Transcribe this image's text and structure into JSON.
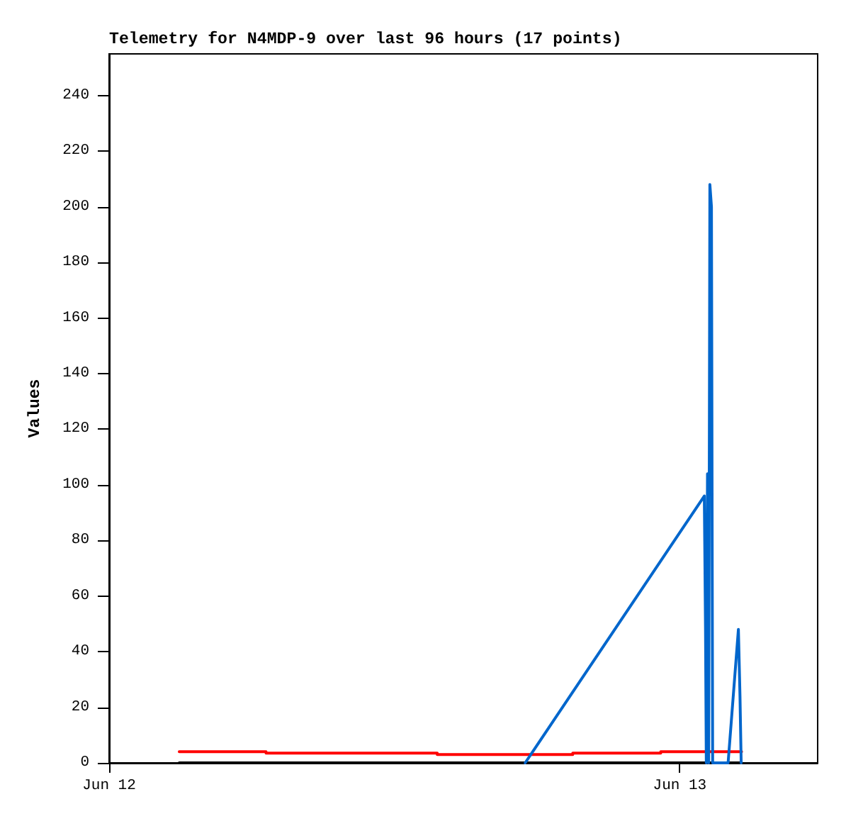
{
  "chart_data": {
    "type": "line",
    "title": "Telemetry for N4MDP-9 over last 96 hours (17 points)",
    "ylabel": "Values",
    "xlim": [
      "--06-12T00:00",
      "--06-13T05:48"
    ],
    "xticks": [
      {
        "value": "--06-12",
        "label": "Jun 12"
      },
      {
        "value": "--06-13",
        "label": "Jun 13"
      }
    ],
    "ylim": [
      0,
      255
    ],
    "yticks": [
      0,
      20,
      40,
      60,
      80,
      100,
      120,
      140,
      160,
      180,
      200,
      220,
      240
    ],
    "marker": "none",
    "series": [
      {
        "color": "#000000",
        "x": [
          "--06-12T02:57",
          "--06-13T02:36"
        ],
        "values": [
          0,
          0
        ]
      },
      {
        "type": "step",
        "color": "#ff0000",
        "x": [
          "--06-12T02:57",
          "--06-12T06:36",
          "--06-12T13:48",
          "--06-12T19:30",
          "--06-12T23:12",
          "--06-13T02:36"
        ],
        "values": [
          4,
          3.5,
          3,
          3.5,
          4,
          4
        ]
      },
      {
        "color": "#0066cc",
        "x": [
          "--06-12T17:30",
          "--06-13T01:02",
          "--06-13T01:05",
          "--06-13T01:07",
          "--06-13T01:10",
          "--06-13T01:13",
          "--06-13T01:16",
          "--06-13T01:20",
          "--06-13T01:23",
          "--06-13T02:02",
          "--06-13T02:28",
          "--06-13T02:32",
          "--06-13T02:35"
        ],
        "values": [
          0,
          96,
          48,
          0,
          104,
          0,
          208,
          200,
          0,
          0,
          48,
          24,
          0
        ]
      }
    ]
  }
}
